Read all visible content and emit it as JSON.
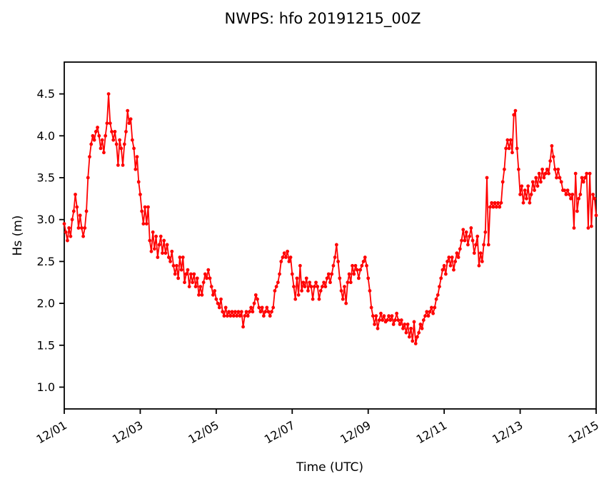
{
  "figure": {
    "background": "#ffffff",
    "axes_color": "#000000"
  },
  "chart_data": {
    "type": "line",
    "title": "NWPS: hfo 20191215_00Z",
    "xlabel": "Time (UTC)",
    "ylabel": "Hs (m)",
    "grid": false,
    "legend": null,
    "line_color": "#ff0000",
    "marker": "point",
    "x_tick_labels": [
      "12/01",
      "12/03",
      "12/05",
      "12/07",
      "12/09",
      "12/11",
      "12/13",
      "12/15"
    ],
    "x_tick_days": [
      0,
      2,
      4,
      6,
      8,
      10,
      12,
      14
    ],
    "x_tick_rotation_deg": 30,
    "xlim_days": [
      0,
      14
    ],
    "x_start": "12/01 00:00",
    "x_end": "12/15 00:00",
    "x_step_hours": 1,
    "y_ticks": [
      1.0,
      1.5,
      2.0,
      2.5,
      3.0,
      3.5,
      4.0,
      4.5
    ],
    "y_tick_labels": [
      "1.0",
      "1.5",
      "2.0",
      "2.5",
      "3.0",
      "3.5",
      "4.0",
      "4.5"
    ],
    "ylim": [
      0.74,
      4.88
    ],
    "series": [
      {
        "name": "Hs",
        "values": [
          2.95,
          2.85,
          2.75,
          2.9,
          2.8,
          3.0,
          3.1,
          3.3,
          3.15,
          2.9,
          3.05,
          2.9,
          2.8,
          2.9,
          3.1,
          3.5,
          3.75,
          3.9,
          4.0,
          3.95,
          4.05,
          4.1,
          4.0,
          3.85,
          3.95,
          3.8,
          4.0,
          4.15,
          4.5,
          4.15,
          4.05,
          3.95,
          4.05,
          3.9,
          3.65,
          3.95,
          3.85,
          3.65,
          3.9,
          4.05,
          4.3,
          4.15,
          4.2,
          3.95,
          3.85,
          3.6,
          3.75,
          3.45,
          3.3,
          3.1,
          2.95,
          3.15,
          2.95,
          3.15,
          2.75,
          2.62,
          2.85,
          2.65,
          2.8,
          2.55,
          2.7,
          2.8,
          2.6,
          2.75,
          2.6,
          2.7,
          2.55,
          2.5,
          2.62,
          2.45,
          2.35,
          2.45,
          2.3,
          2.55,
          2.4,
          2.55,
          2.25,
          2.35,
          2.4,
          2.2,
          2.35,
          2.25,
          2.35,
          2.2,
          2.3,
          2.1,
          2.2,
          2.1,
          2.25,
          2.35,
          2.3,
          2.4,
          2.3,
          2.2,
          2.1,
          2.15,
          2.05,
          2.0,
          1.95,
          2.05,
          1.9,
          1.85,
          1.95,
          1.85,
          1.9,
          1.85,
          1.9,
          1.85,
          1.9,
          1.85,
          1.9,
          1.85,
          1.9,
          1.72,
          1.85,
          1.9,
          1.85,
          1.9,
          1.95,
          1.9,
          2.0,
          2.1,
          2.05,
          1.95,
          1.9,
          1.95,
          1.85,
          1.9,
          1.95,
          1.9,
          1.85,
          1.9,
          1.95,
          2.15,
          2.2,
          2.25,
          2.35,
          2.5,
          2.55,
          2.6,
          2.55,
          2.62,
          2.5,
          2.55,
          2.35,
          2.2,
          2.05,
          2.3,
          2.1,
          2.45,
          2.15,
          2.25,
          2.2,
          2.3,
          2.15,
          2.25,
          2.2,
          2.05,
          2.2,
          2.25,
          2.2,
          2.05,
          2.15,
          2.2,
          2.25,
          2.2,
          2.3,
          2.35,
          2.25,
          2.35,
          2.45,
          2.55,
          2.7,
          2.5,
          2.3,
          2.15,
          2.05,
          2.2,
          2.0,
          2.25,
          2.35,
          2.25,
          2.45,
          2.35,
          2.45,
          2.4,
          2.3,
          2.4,
          2.45,
          2.5,
          2.55,
          2.45,
          2.3,
          2.15,
          1.95,
          1.85,
          1.75,
          1.85,
          1.7,
          1.8,
          1.88,
          1.8,
          1.85,
          1.78,
          1.8,
          1.85,
          1.8,
          1.85,
          1.75,
          1.8,
          1.88,
          1.8,
          1.75,
          1.8,
          1.7,
          1.75,
          1.65,
          1.75,
          1.6,
          1.7,
          1.55,
          1.78,
          1.52,
          1.6,
          1.65,
          1.75,
          1.7,
          1.8,
          1.85,
          1.9,
          1.85,
          1.9,
          1.95,
          1.88,
          1.95,
          2.05,
          2.1,
          2.2,
          2.3,
          2.4,
          2.45,
          2.35,
          2.5,
          2.55,
          2.45,
          2.55,
          2.4,
          2.5,
          2.6,
          2.55,
          2.65,
          2.75,
          2.88,
          2.75,
          2.85,
          2.7,
          2.8,
          2.9,
          2.75,
          2.6,
          2.7,
          2.8,
          2.45,
          2.6,
          2.5,
          2.7,
          2.85,
          3.5,
          2.7,
          3.15,
          3.2,
          3.15,
          3.2,
          3.15,
          3.2,
          3.15,
          3.2,
          3.45,
          3.6,
          3.85,
          3.95,
          3.85,
          3.95,
          3.8,
          4.25,
          4.3,
          3.85,
          3.6,
          3.3,
          3.4,
          3.2,
          3.35,
          3.25,
          3.4,
          3.2,
          3.3,
          3.45,
          3.35,
          3.5,
          3.4,
          3.55,
          3.45,
          3.6,
          3.5,
          3.55,
          3.6,
          3.55,
          3.7,
          3.88,
          3.75,
          3.6,
          3.5,
          3.6,
          3.5,
          3.45,
          3.35,
          3.35,
          3.3,
          3.35,
          3.3,
          3.25,
          3.3,
          2.9,
          3.55,
          3.1,
          3.25,
          3.3,
          3.5,
          3.45,
          3.5,
          3.55,
          2.9,
          3.55,
          2.92,
          3.3,
          3.25,
          3.05
        ]
      }
    ]
  }
}
